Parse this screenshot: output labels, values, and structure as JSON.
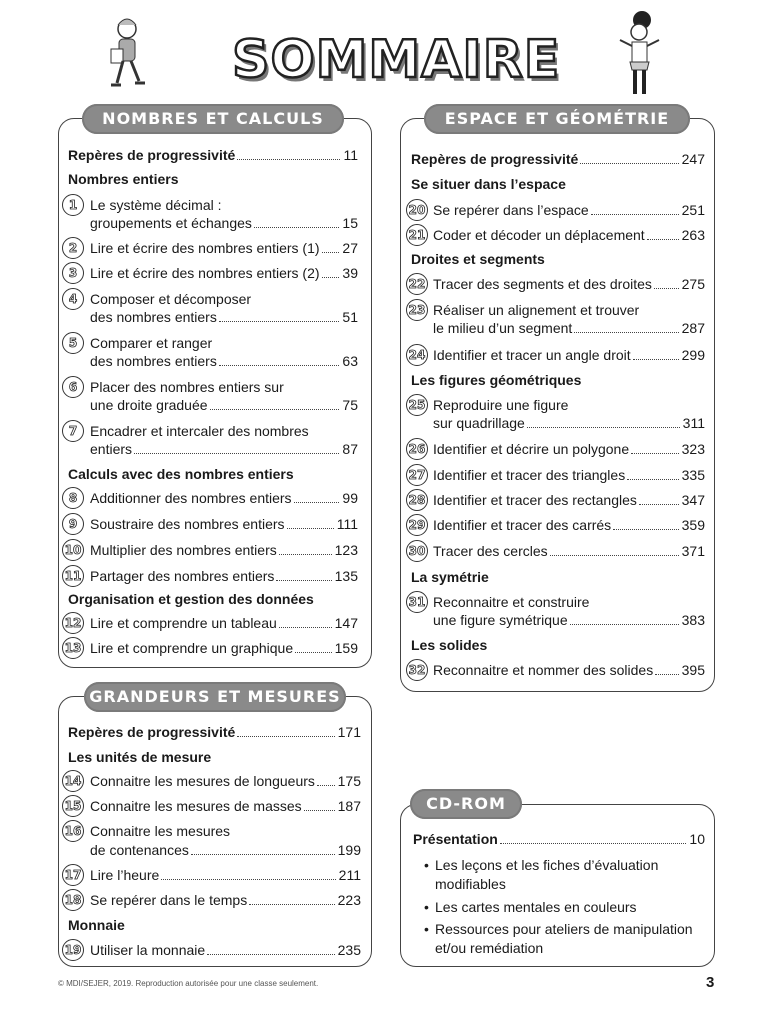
{
  "title": "SOMMAIRE",
  "sections": {
    "nombres": {
      "heading": "NOMBRES ET CALCULS",
      "entries": [
        {
          "type": "rep",
          "lines": [
            "Repères de progressivité"
          ],
          "page": "11"
        },
        {
          "type": "head",
          "lines": [
            "Nombres entiers"
          ]
        },
        {
          "type": "item",
          "num": "1",
          "lines": [
            "Le système décimal :",
            "groupements et échanges"
          ],
          "page": "15"
        },
        {
          "type": "item",
          "num": "2",
          "lines": [
            "Lire et écrire des nombres entiers (1)"
          ],
          "page": "27"
        },
        {
          "type": "item",
          "num": "3",
          "lines": [
            "Lire et écrire des nombres entiers (2)"
          ],
          "page": "39"
        },
        {
          "type": "item",
          "num": "4",
          "lines": [
            "Composer et décomposer",
            "des nombres entiers"
          ],
          "page": "51"
        },
        {
          "type": "item",
          "num": "5",
          "lines": [
            "Comparer et ranger",
            "des nombres entiers"
          ],
          "page": "63"
        },
        {
          "type": "item",
          "num": "6",
          "lines": [
            "Placer des nombres entiers sur",
            "une droite graduée"
          ],
          "page": "75"
        },
        {
          "type": "item",
          "num": "7",
          "lines": [
            "Encadrer et intercaler des nombres",
            "entiers"
          ],
          "page": "87"
        },
        {
          "type": "head",
          "lines": [
            "Calculs avec des nombres entiers"
          ]
        },
        {
          "type": "item",
          "num": "8",
          "lines": [
            "Additionner des nombres entiers"
          ],
          "page": "99"
        },
        {
          "type": "item",
          "num": "9",
          "lines": [
            "Soustraire des nombres entiers"
          ],
          "page": "111"
        },
        {
          "type": "item",
          "num": "10",
          "lines": [
            "Multiplier des nombres entiers"
          ],
          "page": "123"
        },
        {
          "type": "item",
          "num": "11",
          "lines": [
            "Partager des nombres entiers"
          ],
          "page": "135"
        },
        {
          "type": "head",
          "lines": [
            "Organisation et gestion des données"
          ]
        },
        {
          "type": "item",
          "num": "12",
          "lines": [
            "Lire et comprendre un tableau"
          ],
          "page": "147"
        },
        {
          "type": "item",
          "num": "13",
          "lines": [
            "Lire et comprendre un graphique"
          ],
          "page": "159"
        }
      ]
    },
    "grandeurs": {
      "heading": "GRANDEURS ET MESURES",
      "entries": [
        {
          "type": "rep",
          "lines": [
            "Repères de progressivité"
          ],
          "page": "171"
        },
        {
          "type": "head",
          "lines": [
            "Les unités de mesure"
          ]
        },
        {
          "type": "item",
          "num": "14",
          "lines": [
            "Connaitre les mesures de longueurs"
          ],
          "page": "175"
        },
        {
          "type": "item",
          "num": "15",
          "lines": [
            "Connaitre les mesures de masses"
          ],
          "page": "187"
        },
        {
          "type": "item",
          "num": "16",
          "lines": [
            "Connaitre les mesures",
            "de contenances"
          ],
          "page": "199"
        },
        {
          "type": "item",
          "num": "17",
          "lines": [
            "Lire l’heure"
          ],
          "page": "211"
        },
        {
          "type": "item",
          "num": "18",
          "lines": [
            "Se repérer dans le temps"
          ],
          "page": "223"
        },
        {
          "type": "head",
          "lines": [
            "Monnaie"
          ]
        },
        {
          "type": "item",
          "num": "19",
          "lines": [
            "Utiliser la monnaie"
          ],
          "page": "235"
        }
      ]
    },
    "espace": {
      "heading": "ESPACE ET GÉOMÉTRIE",
      "entries": [
        {
          "type": "rep",
          "lines": [
            "Repères de progressivité"
          ],
          "page": "247"
        },
        {
          "type": "head",
          "lines": [
            "Se situer dans l’espace"
          ]
        },
        {
          "type": "item",
          "num": "20",
          "lines": [
            "Se repérer dans l’espace"
          ],
          "page": "251"
        },
        {
          "type": "item",
          "num": "21",
          "lines": [
            "Coder et décoder un déplacement"
          ],
          "page": "263"
        },
        {
          "type": "head",
          "lines": [
            "Droites et segments"
          ]
        },
        {
          "type": "item",
          "num": "22",
          "lines": [
            "Tracer des segments et des droites"
          ],
          "page": "275"
        },
        {
          "type": "item",
          "num": "23",
          "lines": [
            "Réaliser un alignement et trouver",
            "le milieu d’un segment"
          ],
          "page": "287"
        },
        {
          "type": "item",
          "num": "24",
          "lines": [
            "Identifier et tracer un angle droit"
          ],
          "page": "299"
        },
        {
          "type": "head",
          "lines": [
            "Les figures géométriques"
          ]
        },
        {
          "type": "item",
          "num": "25",
          "lines": [
            "Reproduire une figure",
            "sur quadrillage"
          ],
          "page": "311"
        },
        {
          "type": "item",
          "num": "26",
          "lines": [
            "Identifier et décrire un polygone"
          ],
          "page": "323"
        },
        {
          "type": "item",
          "num": "27",
          "lines": [
            "Identifier et tracer des triangles"
          ],
          "page": "335"
        },
        {
          "type": "item",
          "num": "28",
          "lines": [
            "Identifier et tracer des rectangles"
          ],
          "page": "347"
        },
        {
          "type": "item",
          "num": "29",
          "lines": [
            "Identifier et tracer des carrés"
          ],
          "page": "359"
        },
        {
          "type": "item",
          "num": "30",
          "lines": [
            "Tracer des cercles"
          ],
          "page": "371"
        },
        {
          "type": "head",
          "lines": [
            "La symétrie"
          ]
        },
        {
          "type": "item",
          "num": "31",
          "lines": [
            "Reconnaitre et construire",
            "une figure symétrique"
          ],
          "page": "383"
        },
        {
          "type": "head",
          "lines": [
            "Les solides"
          ]
        },
        {
          "type": "item",
          "num": "32",
          "lines": [
            "Reconnaitre et nommer des solides"
          ],
          "page": "395"
        }
      ]
    },
    "cdrom": {
      "heading": "CD-ROM",
      "entries": [
        {
          "type": "rep",
          "lines": [
            "Présentation"
          ],
          "page": "10"
        }
      ],
      "bullets": [
        [
          "Les leçons et les fiches d’évaluation",
          "modifiables"
        ],
        [
          "Les cartes mentales en couleurs"
        ],
        [
          "Ressources pour ateliers de manipulation",
          "et/ou remédiation"
        ]
      ]
    }
  },
  "footer": "© MDI/SEJER, 2019. Reproduction autorisée pour une classe seulement.",
  "page_number": "3"
}
